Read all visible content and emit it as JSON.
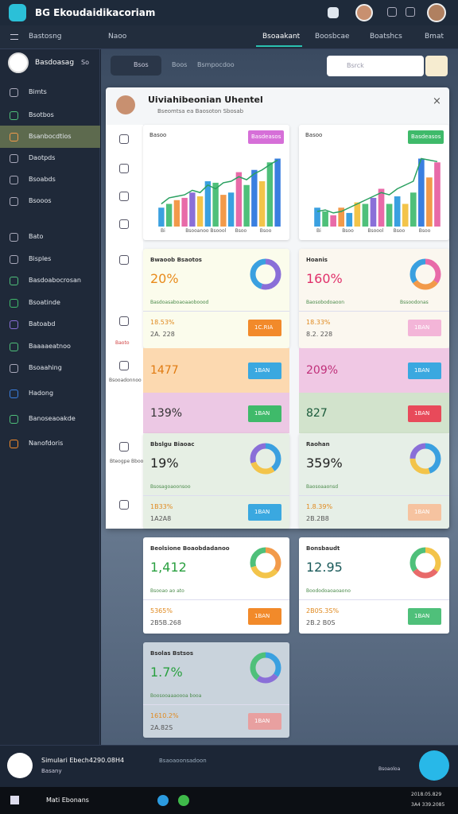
{
  "app": {
    "title": "BG Ekoudaidikacoriam",
    "tabs": [
      "Bastosng",
      "Naoo",
      "Bsoaakant",
      "Boosbcae",
      "Boatshcs",
      "Bmat"
    ],
    "active_tab": 2
  },
  "sidebar": {
    "user": "Basdoasag",
    "user_badge": "So",
    "items": [
      "Bimts",
      "Bsotbos",
      "Bsanbocdtios",
      "Daotpds",
      "Bsoabds",
      "Bsooos",
      "Bato",
      "Bisples",
      "Basdoabocrosan",
      "Bsoatinde",
      "Batoabd",
      "Baaaaeatnoo",
      "Bsoaahing",
      "Hadong",
      "Banoseaoakde",
      "Nanofdoris"
    ],
    "active": 2
  },
  "toolbar": {
    "search_tag": "Bsos",
    "links": [
      "Boos",
      "Bsmpocdoo"
    ],
    "search_placeholder": "Bsrck"
  },
  "panel": {
    "title": "Uiviahibeonian Uhentel",
    "subtitle": "Bseomtsa ea Baosoton Sbosab",
    "side_labels": [
      "Baoto",
      "Bsooadonnoo",
      "Bteogpe Bbooaer"
    ]
  },
  "charts": [
    {
      "label": "Basoo",
      "badge": "Basdeasos",
      "badge_color": "#d66fd8",
      "categories": [
        "Bi",
        "Bsooanoo",
        "Bsoool",
        "Bsoo",
        "Bsoo"
      ],
      "ylim": [
        0,
        100
      ],
      "values": [
        25,
        30,
        35,
        38,
        45,
        40,
        60,
        58,
        42,
        45,
        72,
        55,
        75,
        60,
        85,
        90
      ],
      "line": [
        30,
        38,
        40,
        42,
        48,
        45,
        55,
        50,
        58,
        60,
        66,
        62,
        70,
        75,
        82,
        88
      ],
      "colors": [
        "#3aa0e0",
        "#4fc07a",
        "#f29a4a",
        "#e86aa8",
        "#8a6fd8",
        "#f3c44a",
        "#3aa0e0",
        "#4fc07a",
        "#f29a4a",
        "#3aa0e0",
        "#e86aa8",
        "#4fc07a",
        "#3a7fe0",
        "#f3c44a",
        "#4fc07a",
        "#3a7fe0"
      ]
    },
    {
      "label": "Basoo",
      "badge": "Basdeasos",
      "badge_color": "#3fba6a",
      "categories": [
        "Bi",
        "Bsoo",
        "Bsoool",
        "Bsoo",
        "Bsoo"
      ],
      "ylim": [
        0,
        100
      ],
      "values": [
        25,
        20,
        15,
        25,
        18,
        32,
        30,
        38,
        50,
        30,
        40,
        30,
        45,
        90,
        65,
        85
      ],
      "line": [
        20,
        22,
        18,
        20,
        25,
        30,
        35,
        40,
        45,
        42,
        50,
        55,
        60,
        90,
        88,
        86
      ],
      "colors": [
        "#3aa0e0",
        "#4fc07a",
        "#e86aa8",
        "#f29a4a",
        "#3aa0e0",
        "#f3c44a",
        "#4fc07a",
        "#8a6fd8",
        "#e86aa8",
        "#4fc07a",
        "#3aa0e0",
        "#f3c44a",
        "#4fc07a",
        "#3a7fe0",
        "#f29a4a",
        "#e86aa8"
      ]
    }
  ],
  "cards": [
    {
      "title": "Bwaoob Bsaotos",
      "value": "20%",
      "value_color": "#e88a1a",
      "sub": "Basdoasaboaoaaoboood",
      "stats": [
        "18.53%",
        "2A. 228"
      ],
      "button": "1C.RIA",
      "button_color": "#f28a2a",
      "bg": "#fbfcec",
      "donut": [
        {
          "value": 55,
          "color": "#8a6fd8"
        },
        {
          "value": 45,
          "color": "#3aa0e0"
        }
      ]
    },
    {
      "title": "Hoanis",
      "value": "160%",
      "value_color": "#e0306a",
      "sub": "Baosobodoaoon",
      "sub_right": "Bssoodonas",
      "stats": [
        "18.33%",
        "8.2. 228"
      ],
      "button": "1BAN",
      "button_color": "#f3b5d8",
      "bg": "#fbf7ef",
      "donut": [
        {
          "value": 35,
          "color": "#e86aa8"
        },
        {
          "value": 30,
          "color": "#f29a4a"
        },
        {
          "value": 35,
          "color": "#3aa0e0"
        }
      ]
    },
    {
      "title": "Bbslgu Biaoac",
      "value": "19%",
      "value_color": "#222",
      "sub": "Bsosagoaoonsoo",
      "stats": [
        "1B33%",
        "1A2A8"
      ],
      "button": "1BAN",
      "button_color": "#3aa8e0",
      "bg": "#e6efe4",
      "donut": [
        {
          "value": 40,
          "color": "#3aa0e0"
        },
        {
          "value": 30,
          "color": "#f3c44a"
        },
        {
          "value": 30,
          "color": "#8a6fd8"
        }
      ]
    },
    {
      "title": "Raohan",
      "value": "359%",
      "value_color": "#222",
      "sub": "Baosoaaonsd",
      "stats": [
        "1.8.39%",
        "2B.2B8"
      ],
      "button": "1BAN",
      "button_color": "#f6c3a0",
      "bg": "#e6efe7",
      "donut": [
        {
          "value": 45,
          "color": "#3aa0e0"
        },
        {
          "value": 30,
          "color": "#f3c44a"
        },
        {
          "value": 25,
          "color": "#8a6fd8"
        }
      ]
    },
    {
      "title": "Beolsione Boaobdadanoo",
      "value": "1,412",
      "value_color": "#2aa040",
      "sub": "Bsooao ao ato",
      "stats": [
        "5365%",
        "2B5B.268"
      ],
      "button": "1BAN",
      "button_color": "#f28a2a",
      "bg": "#ffffff",
      "donut": [
        {
          "value": 35,
          "color": "#f29a4a"
        },
        {
          "value": 35,
          "color": "#f3c44a"
        },
        {
          "value": 30,
          "color": "#4fc07a"
        }
      ]
    },
    {
      "title": "Bonsbaudt",
      "value": "12.95",
      "value_color": "#1a5a5a",
      "sub": "Boododoaoaoaono",
      "stats": [
        "2B0S.3S%",
        "2B.2 B0S"
      ],
      "button": "1BAN",
      "button_color": "#4fc07a",
      "bg": "#ffffff",
      "donut": [
        {
          "value": 35,
          "color": "#f3c44a"
        },
        {
          "value": 30,
          "color": "#e86a6a"
        },
        {
          "value": 35,
          "color": "#4fc07a"
        }
      ]
    },
    {
      "title": "Bsolas Bstsos",
      "value": "1.7%",
      "value_color": "#2aa040",
      "sub": "Boosooaaaoooa booa",
      "stats": [
        "1610.2%",
        "2A.82S"
      ],
      "button": "1BAN",
      "button_color": "#e8a0a0",
      "bg": "#c9d3dc",
      "donut": [
        {
          "value": 35,
          "color": "#3aa0e0"
        },
        {
          "value": 25,
          "color": "#8a6fd8"
        },
        {
          "value": 40,
          "color": "#4fc07a"
        }
      ]
    }
  ],
  "rows": [
    {
      "value": "1477",
      "value_color": "#e07a10",
      "bg": "#fcd9b0",
      "button": "1BAN",
      "button_color": "#3aa8e0"
    },
    {
      "value": "139%",
      "value_color": "#333",
      "bg": "#ecc8e4",
      "button": "1BAN",
      "button_color": "#3fba6a"
    },
    {
      "value": "209%",
      "value_color": "#c0307a",
      "bg": "#f0c8e4",
      "button": "1BAN",
      "button_color": "#3aa8e0"
    },
    {
      "value": "827",
      "value_color": "#1a5a3a",
      "bg": "#d2e3cc",
      "button": "1BAN",
      "button_color": "#e84a5a"
    }
  ],
  "footer": {
    "name": "Simulari Ebech4290.08H4",
    "role": "Basany",
    "status": "Bsaoaoonsadoon",
    "right": "Bsoaoloa"
  },
  "taskbar": {
    "search": "Mati Ebonans",
    "date": "2018.05.829",
    "time": "3A4 339.2085"
  }
}
